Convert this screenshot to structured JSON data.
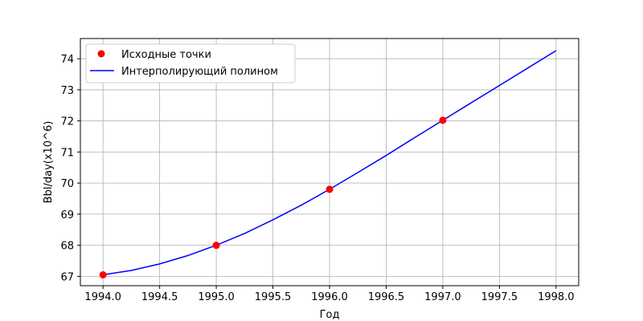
{
  "chart_data": {
    "type": "line",
    "title": "",
    "xlabel": "Год",
    "ylabel": "Bbl/day(x10^6)",
    "xlim": [
      1993.8,
      1998.2
    ],
    "ylim": [
      66.7,
      74.65
    ],
    "grid": true,
    "legend_position": "top-left",
    "x_ticks": [
      1994.0,
      1994.5,
      1995.0,
      1995.5,
      1996.0,
      1996.5,
      1997.0,
      1997.5,
      1998.0
    ],
    "x_tick_labels": [
      "1994.0",
      "1994.5",
      "1995.0",
      "1995.5",
      "1996.0",
      "1996.5",
      "1997.0",
      "1997.5",
      "1998.0"
    ],
    "y_ticks": [
      67,
      68,
      69,
      70,
      71,
      72,
      73,
      74
    ],
    "y_tick_labels": [
      "67",
      "68",
      "69",
      "70",
      "71",
      "72",
      "73",
      "74"
    ],
    "series": [
      {
        "name": "Исходные точки",
        "kind": "scatter",
        "color": "#ff0000",
        "x": [
          1994,
          1995,
          1996,
          1997
        ],
        "y": [
          67.05,
          68.0,
          69.8,
          72.02
        ]
      },
      {
        "name": "Интерполирующий полином",
        "kind": "line",
        "color": "#0000ff",
        "x": [
          1994.0,
          1994.25,
          1994.5,
          1994.75,
          1995.0,
          1995.25,
          1995.5,
          1995.75,
          1996.0,
          1996.25,
          1996.5,
          1996.75,
          1997.0,
          1997.25,
          1997.5,
          1997.75,
          1998.0
        ],
        "y": [
          67.05,
          67.19,
          67.4,
          67.67,
          68.0,
          68.38,
          68.82,
          69.29,
          69.8,
          70.34,
          70.89,
          71.46,
          72.02,
          72.58,
          73.14,
          73.7,
          74.26
        ]
      }
    ]
  }
}
